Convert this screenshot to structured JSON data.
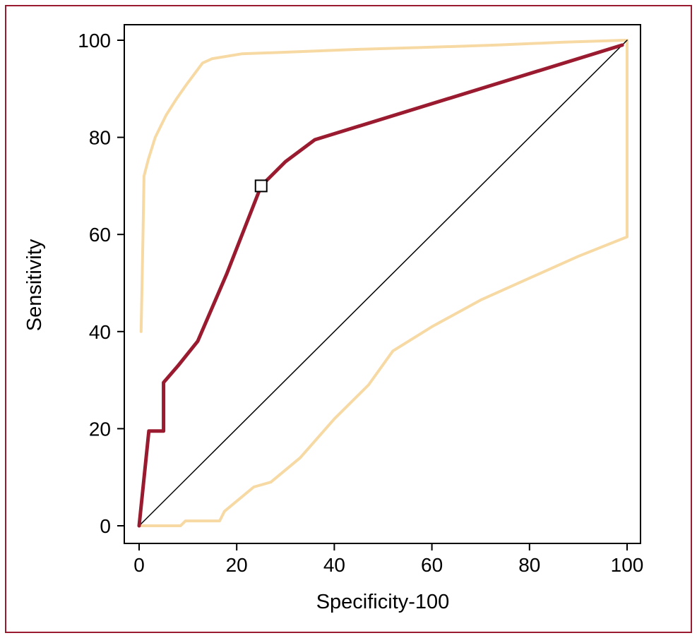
{
  "figure": {
    "frame_color": "#9a1b2f",
    "background_color": "#ffffff"
  },
  "chart_data": {
    "type": "line",
    "title": "",
    "xlabel": "Specificity-100",
    "ylabel": "Sensitivity",
    "xlim": [
      0,
      100
    ],
    "ylim": [
      0,
      100
    ],
    "xticks": [
      0,
      20,
      40,
      60,
      80,
      100
    ],
    "yticks": [
      0,
      20,
      40,
      60,
      80,
      100
    ],
    "grid": false,
    "legend": false,
    "colors": {
      "roc_curve": "#9a1b2f",
      "confidence_band": "#f7d9a4",
      "reference_diagonal": "#000000",
      "axis": "#000000"
    },
    "series": [
      {
        "name": "upper-confidence-band-line",
        "color": "#f7d9a4",
        "width": 4,
        "points": [
          [
            0.4,
            40
          ],
          [
            0.8,
            60
          ],
          [
            1,
            72
          ],
          [
            1.9,
            75.5
          ],
          [
            3.3,
            80
          ],
          [
            5.5,
            84.5
          ],
          [
            7.7,
            88
          ],
          [
            9.8,
            91
          ],
          [
            13,
            95.3
          ],
          [
            15,
            96.2
          ],
          [
            21,
            97.2
          ],
          [
            29,
            97.5
          ],
          [
            44,
            98.1
          ],
          [
            58,
            98.5
          ],
          [
            73,
            99
          ],
          [
            87,
            99.6
          ],
          [
            99.6,
            100
          ]
        ]
      },
      {
        "name": "lower-confidence-band-line",
        "color": "#f7d9a4",
        "width": 4,
        "points": [
          [
            0,
            0
          ],
          [
            8.5,
            0
          ],
          [
            9.5,
            1
          ],
          [
            16.5,
            1
          ],
          [
            17.5,
            3
          ],
          [
            23.5,
            8
          ],
          [
            27,
            9
          ],
          [
            33,
            14
          ],
          [
            40,
            22
          ],
          [
            47,
            29
          ],
          [
            52,
            36
          ],
          [
            60,
            41
          ],
          [
            70,
            46.5
          ],
          [
            80,
            51
          ],
          [
            90,
            55.5
          ],
          [
            100,
            59.5
          ],
          [
            100,
            100
          ]
        ]
      },
      {
        "name": "reference-diagonal-line",
        "color": "#000000",
        "width": 1.5,
        "points": [
          [
            0,
            0
          ],
          [
            100,
            100
          ]
        ]
      },
      {
        "name": "roc-curve-line",
        "color": "#9a1b2f",
        "width": 5,
        "points": [
          [
            0,
            0
          ],
          [
            2,
            19.5
          ],
          [
            5,
            19.5
          ],
          [
            5,
            29.5
          ],
          [
            8,
            33
          ],
          [
            12,
            38
          ],
          [
            18,
            52
          ],
          [
            25,
            70
          ],
          [
            30,
            75
          ],
          [
            36,
            79.5
          ],
          [
            99,
            99
          ]
        ]
      }
    ],
    "marker": {
      "name": "optimal-cutoff-marker",
      "shape": "open-square",
      "x": 25,
      "y": 70
    }
  }
}
